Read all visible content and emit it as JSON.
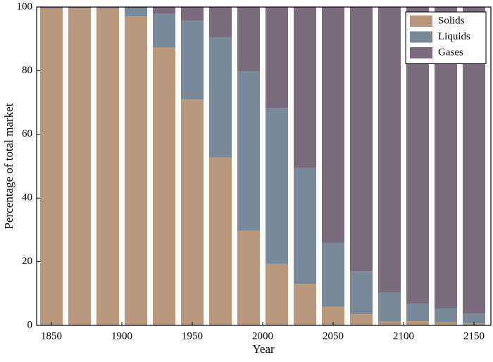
{
  "chart_data": {
    "type": "stacked_bar",
    "xlabel": "Year",
    "ylabel": "Percentage of total market",
    "x": [
      1850,
      1870,
      1890,
      1910,
      1930,
      1950,
      1970,
      1990,
      2010,
      2030,
      2050,
      2070,
      2090,
      2110,
      2130,
      2150
    ],
    "series": [
      {
        "name": "Solids",
        "color": "#b8977a",
        "values": [
          99.5,
          99.8,
          99.5,
          97.1,
          87.3,
          71,
          52.7,
          29.7,
          19.3,
          13,
          5.8,
          3.5,
          1.2,
          1.3,
          1.0,
          0.6
        ]
      },
      {
        "name": "Liquids",
        "color": "#78899a",
        "values": [
          0.3,
          0,
          0.3,
          2.4,
          10.7,
          24.8,
          37.8,
          50,
          48.9,
          36.4,
          20.2,
          13.5,
          9.1,
          5.5,
          4.3,
          3.0
        ]
      },
      {
        "name": "Gases",
        "color": "#7c6a7f",
        "values": [
          0.2,
          0.2,
          0.2,
          0.5,
          2,
          4.2,
          9.5,
          20.3,
          31.8,
          50.6,
          74,
          83,
          89.7,
          93.2,
          94.7,
          96.4
        ]
      }
    ],
    "xlim": [
      1839.5,
      2162
    ],
    "xticks": [
      1850,
      1900,
      1950,
      2000,
      2050,
      2100,
      2150
    ],
    "ylim": [
      0,
      100
    ],
    "yticks": [
      0,
      20,
      40,
      60,
      80,
      100
    ],
    "legend": "upper right"
  }
}
